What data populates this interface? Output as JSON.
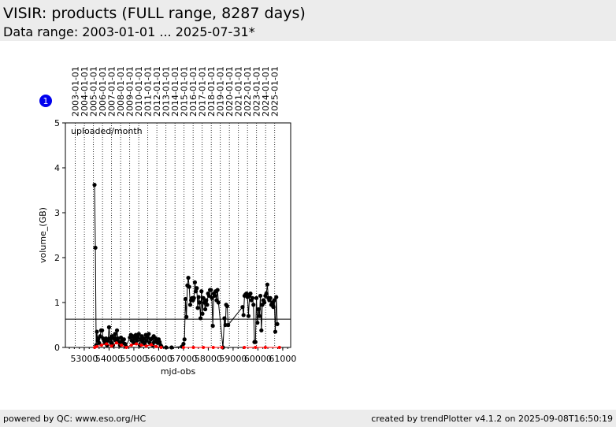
{
  "header": {
    "title": "VISIR: products (FULL range, 8287 days)",
    "subtitle": "Data range: 2003-01-01 ... 2025-07-31*"
  },
  "footer": {
    "left": "powered by QC: www.eso.org/HC",
    "right": "created by trendPlotter v4.1.2 on 2025-09-08T16:50:19"
  },
  "chart_data": {
    "type": "line",
    "badge": "1",
    "annotation": "uploaded/month",
    "x_label": "mjd-obs",
    "y_label": "volume_(GB)",
    "xlim": [
      52240,
      61320
    ],
    "ylim": [
      0,
      5
    ],
    "xticks": [
      53000,
      54000,
      55000,
      56000,
      57000,
      58000,
      59000,
      60000,
      61000
    ],
    "yticks": [
      0,
      1,
      2,
      3,
      4,
      5
    ],
    "date_ticks": [
      {
        "value": 52640,
        "label": "2003-01-01"
      },
      {
        "value": 53005,
        "label": "2004-01-01"
      },
      {
        "value": 53371,
        "label": "2005-01-01"
      },
      {
        "value": 53736,
        "label": "2006-01-01"
      },
      {
        "value": 54101,
        "label": "2007-01-01"
      },
      {
        "value": 54466,
        "label": "2008-01-01"
      },
      {
        "value": 54832,
        "label": "2009-01-01"
      },
      {
        "value": 55197,
        "label": "2010-01-01"
      },
      {
        "value": 55562,
        "label": "2011-01-01"
      },
      {
        "value": 55927,
        "label": "2012-01-01"
      },
      {
        "value": 56293,
        "label": "2013-01-01"
      },
      {
        "value": 56658,
        "label": "2014-01-01"
      },
      {
        "value": 57023,
        "label": "2015-01-01"
      },
      {
        "value": 57388,
        "label": "2016-01-01"
      },
      {
        "value": 57754,
        "label": "2017-01-01"
      },
      {
        "value": 58119,
        "label": "2018-01-01"
      },
      {
        "value": 58484,
        "label": "2019-01-01"
      },
      {
        "value": 58849,
        "label": "2020-01-01"
      },
      {
        "value": 59215,
        "label": "2021-01-01"
      },
      {
        "value": 59580,
        "label": "2022-01-01"
      },
      {
        "value": 59945,
        "label": "2023-01-01"
      },
      {
        "value": 60310,
        "label": "2024-01-01"
      },
      {
        "value": 60676,
        "label": "2025-01-01"
      }
    ],
    "hline": 0.63,
    "series": [
      {
        "color": "#000000",
        "x": [
          53415,
          53450,
          53480,
          53510,
          53540,
          53570,
          53600,
          53640,
          53680,
          53720,
          53760,
          53800,
          53840,
          53880,
          53920,
          53960,
          54000,
          54040,
          54080,
          54120,
          54160,
          54200,
          54240,
          54280,
          54320,
          54360,
          54400,
          54440,
          54480,
          54520,
          54560,
          54600,
          54640,
          54680,
          54840,
          54880,
          54920,
          54960,
          55000,
          55040,
          55080,
          55120,
          55160,
          55200,
          55240,
          55280,
          55320,
          55360,
          55400,
          55440,
          55480,
          55520,
          55560,
          55600,
          55640,
          55680,
          55720,
          55760,
          55800,
          55840,
          55880,
          55920,
          55960,
          56000,
          56040,
          56080,
          56110,
          56300,
          56520,
          56940,
          57000,
          57040,
          57080,
          57118,
          57156,
          57194,
          57232,
          57270,
          57308,
          57346,
          57384,
          57422,
          57460,
          57498,
          57536,
          57574,
          57612,
          57650,
          57688,
          57726,
          57764,
          57802,
          57840,
          57878,
          57916,
          57954,
          57992,
          58030,
          58068,
          58106,
          58144,
          58182,
          58220,
          58258,
          58296,
          58334,
          58372,
          58410,
          58590,
          58650,
          58690,
          58720,
          58760,
          58800,
          59380,
          59420,
          59460,
          59500,
          59540,
          59580,
          59620,
          59660,
          59700,
          59740,
          59780,
          59820,
          59860,
          59900,
          59940,
          59980,
          60020,
          60060,
          60100,
          60140,
          60180,
          60220,
          60260,
          60300,
          60340,
          60380,
          60420,
          60460,
          60500,
          60540,
          60580,
          60620,
          60660,
          60700,
          60740,
          60780
        ],
        "values": [
          3.62,
          2.22,
          0.05,
          0.35,
          0.15,
          0.2,
          0.1,
          0.25,
          0.38,
          0.38,
          0.2,
          0.15,
          0.1,
          0.2,
          0.05,
          0.15,
          0.45,
          0.2,
          0.1,
          0.25,
          0.05,
          0.2,
          0.3,
          0.15,
          0.38,
          0.2,
          0.12,
          0.05,
          0.22,
          0.15,
          0.1,
          0.18,
          0.08,
          0.02,
          0.22,
          0.28,
          0.15,
          0.25,
          0.1,
          0.2,
          0.28,
          0.15,
          0.22,
          0.3,
          0.05,
          0.18,
          0.25,
          0.12,
          0.2,
          0.08,
          0.28,
          0.15,
          0.22,
          0.3,
          0.1,
          0.18,
          0.2,
          0.05,
          0.25,
          0.12,
          0.2,
          0.15,
          0.1,
          0.18,
          0.12,
          0.05,
          0.02,
          0.0,
          0.0,
          0.02,
          0.08,
          0.18,
          1.08,
          0.68,
          1.38,
          1.55,
          1.35,
          0.95,
          1.05,
          1.1,
          1.05,
          1.1,
          1.45,
          1.25,
          1.32,
          0.88,
          1.12,
          1.0,
          0.65,
          1.25,
          0.75,
          1.1,
          1.0,
          0.85,
          1.05,
          0.95,
          1.2,
          1.15,
          1.28,
          1.28,
          1.1,
          0.48,
          1.2,
          1.15,
          1.25,
          1.05,
          1.28,
          1.0,
          0.0,
          0.65,
          0.5,
          0.95,
          0.92,
          0.5,
          0.9,
          0.72,
          1.15,
          1.18,
          1.2,
          1.12,
          0.7,
          1.15,
          1.2,
          1.05,
          1.1,
          0.95,
          0.12,
          0.12,
          1.1,
          0.55,
          0.85,
          0.7,
          1.15,
          0.38,
          0.95,
          1.05,
          1.0,
          1.15,
          1.2,
          1.4,
          1.1,
          1.05,
          1.1,
          0.95,
          1.0,
          0.9,
          1.05,
          0.35,
          1.12,
          0.52
        ]
      },
      {
        "color": "#ff0000",
        "x": [
          53420,
          53500,
          53700,
          53900,
          54100,
          54300,
          54500,
          54700,
          54900,
          55100,
          55300,
          55500,
          55700,
          55900,
          56100,
          56500,
          57000,
          57400,
          57800,
          58200,
          58550,
          59000,
          59450,
          59900,
          60300,
          60870
        ],
        "values": [
          0.0,
          0.02,
          0.05,
          0.08,
          0.03,
          0.1,
          0.05,
          0.0,
          0.05,
          0.08,
          0.05,
          0.03,
          0.06,
          0.02,
          0.0,
          null,
          0.0,
          0.0,
          0.0,
          0.0,
          0.0,
          null,
          0.0,
          0.0,
          0.0,
          0.0
        ]
      }
    ]
  }
}
